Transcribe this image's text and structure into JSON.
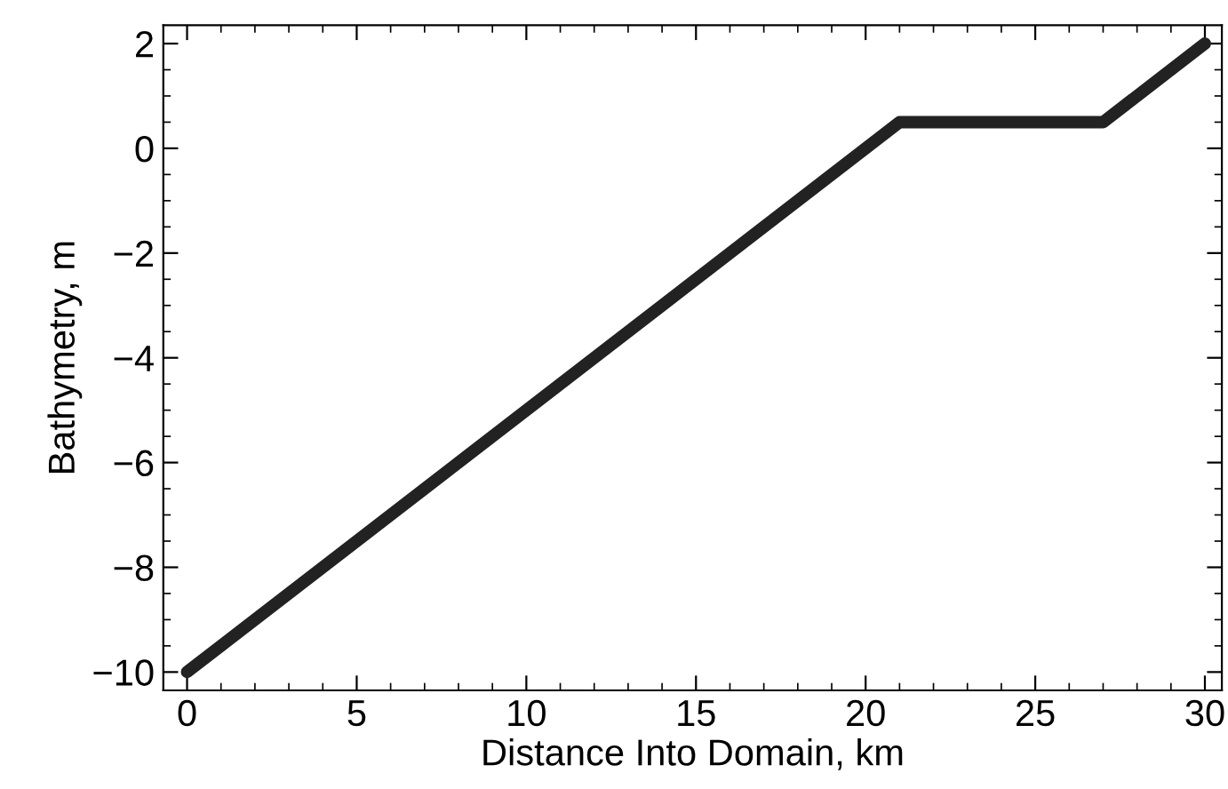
{
  "chart_data": {
    "type": "line",
    "xlabel": "Distance Into Domain, km",
    "ylabel": "Bathymetry, m",
    "x": [
      0,
      21,
      27,
      30
    ],
    "series": [
      {
        "color": "#222222",
        "values": [
          -10,
          0.5,
          0.5,
          2
        ]
      }
    ],
    "xlim": [
      -0.7,
      30.5
    ],
    "ylim": [
      -10.35,
      2.35
    ],
    "xticks": [
      0,
      5,
      10,
      15,
      20,
      25,
      30
    ],
    "yticks": [
      -10,
      -8,
      -6,
      -4,
      -2,
      0,
      2
    ],
    "grid": false,
    "legend": false,
    "line_style": "solid"
  }
}
